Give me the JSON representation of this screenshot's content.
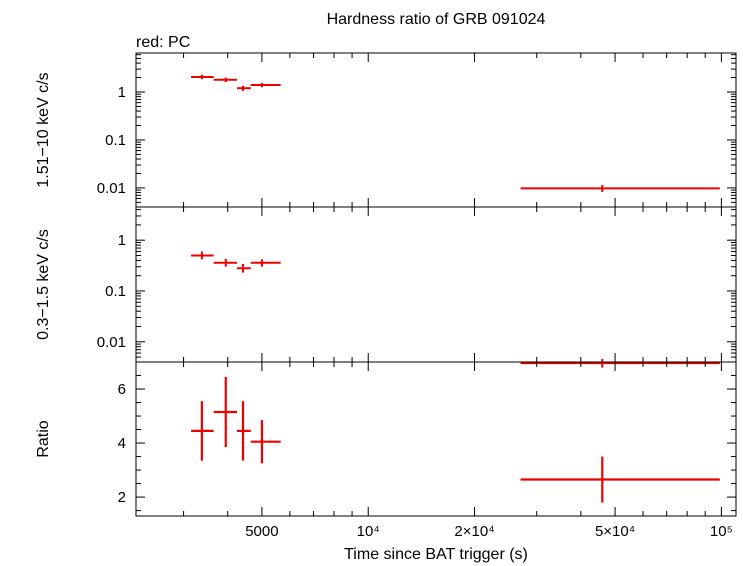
{
  "title": "Hardness ratio of GRB 091024",
  "legend_note": "red: PC",
  "xlabel": "Time since BAT trigger (s)",
  "x_ticks": [
    {
      "value": 5000,
      "label": "5000"
    },
    {
      "value": 10000,
      "label": "10⁴"
    },
    {
      "value": 20000,
      "label": "2×10⁴"
    },
    {
      "value": 50000,
      "label": "5×10⁴"
    },
    {
      "value": 100000,
      "label": "10⁵"
    }
  ],
  "colors": {
    "series": "#ee0000",
    "axes": "#000000"
  },
  "chart_data": [
    {
      "type": "scatter",
      "panel": "hard",
      "ylabel": "1.51−10 keV c/s",
      "xscale": "log",
      "yscale": "log",
      "xlim": [
        2200,
        110000
      ],
      "ylim": [
        0.004,
        6.5
      ],
      "y_ticks": [
        {
          "value": 0.01,
          "label": "0.01"
        },
        {
          "value": 0.1,
          "label": "0.1"
        },
        {
          "value": 1,
          "label": "1"
        }
      ],
      "series": [
        {
          "points": [
            {
              "x": 3380,
              "xlo": 3150,
              "xhi": 3650,
              "y": 2.05,
              "ylo": 1.85,
              "yhi": 2.3
            },
            {
              "x": 3950,
              "xlo": 3650,
              "xhi": 4250,
              "y": 1.8,
              "ylo": 1.6,
              "yhi": 2.0
            },
            {
              "x": 4420,
              "xlo": 4250,
              "xhi": 4650,
              "y": 1.2,
              "ylo": 1.05,
              "yhi": 1.35
            },
            {
              "x": 5000,
              "xlo": 4650,
              "xhi": 5650,
              "y": 1.4,
              "ylo": 1.25,
              "yhi": 1.55
            },
            {
              "x": 46000,
              "xlo": 27000,
              "xhi": 99000,
              "y": 0.0098,
              "ylo": 0.0082,
              "yhi": 0.0115
            }
          ]
        }
      ]
    },
    {
      "type": "scatter",
      "panel": "soft",
      "ylabel": "0.3−1.5 keV c/s",
      "xscale": "log",
      "yscale": "log",
      "xlim": [
        2200,
        110000
      ],
      "ylim": [
        0.004,
        4.5
      ],
      "y_ticks": [
        {
          "value": 0.01,
          "label": "0.01"
        },
        {
          "value": 0.1,
          "label": "0.1"
        },
        {
          "value": 1,
          "label": "1"
        }
      ],
      "series": [
        {
          "points": [
            {
              "x": 3380,
              "xlo": 3150,
              "xhi": 3650,
              "y": 0.5,
              "ylo": 0.42,
              "yhi": 0.6
            },
            {
              "x": 3950,
              "xlo": 3650,
              "xhi": 4250,
              "y": 0.36,
              "ylo": 0.3,
              "yhi": 0.43
            },
            {
              "x": 4420,
              "xlo": 4250,
              "xhi": 4650,
              "y": 0.28,
              "ylo": 0.23,
              "yhi": 0.34
            },
            {
              "x": 5000,
              "xlo": 4650,
              "xhi": 5650,
              "y": 0.36,
              "ylo": 0.3,
              "yhi": 0.42
            },
            {
              "x": 46000,
              "xlo": 27000,
              "xhi": 99000,
              "y": 0.0038,
              "ylo": 0.0031,
              "yhi": 0.0046
            }
          ]
        }
      ]
    },
    {
      "type": "scatter",
      "panel": "ratio",
      "ylabel": "Ratio",
      "xscale": "log",
      "yscale": "linear",
      "xlim": [
        2200,
        110000
      ],
      "ylim": [
        1.3,
        7.0
      ],
      "y_ticks": [
        {
          "value": 2,
          "label": "2"
        },
        {
          "value": 4,
          "label": "4"
        },
        {
          "value": 6,
          "label": "6"
        }
      ],
      "series": [
        {
          "points": [
            {
              "x": 3380,
              "xlo": 3150,
              "xhi": 3650,
              "y": 4.45,
              "ylo": 3.35,
              "yhi": 5.55
            },
            {
              "x": 3950,
              "xlo": 3650,
              "xhi": 4250,
              "y": 5.15,
              "ylo": 3.85,
              "yhi": 6.45
            },
            {
              "x": 4420,
              "xlo": 4250,
              "xhi": 4650,
              "y": 4.45,
              "ylo": 3.35,
              "yhi": 5.55
            },
            {
              "x": 5000,
              "xlo": 4650,
              "xhi": 5650,
              "y": 4.05,
              "ylo": 3.25,
              "yhi": 4.85
            },
            {
              "x": 46000,
              "xlo": 27000,
              "xhi": 99000,
              "y": 2.65,
              "ylo": 1.8,
              "yhi": 3.5
            }
          ]
        }
      ]
    }
  ]
}
